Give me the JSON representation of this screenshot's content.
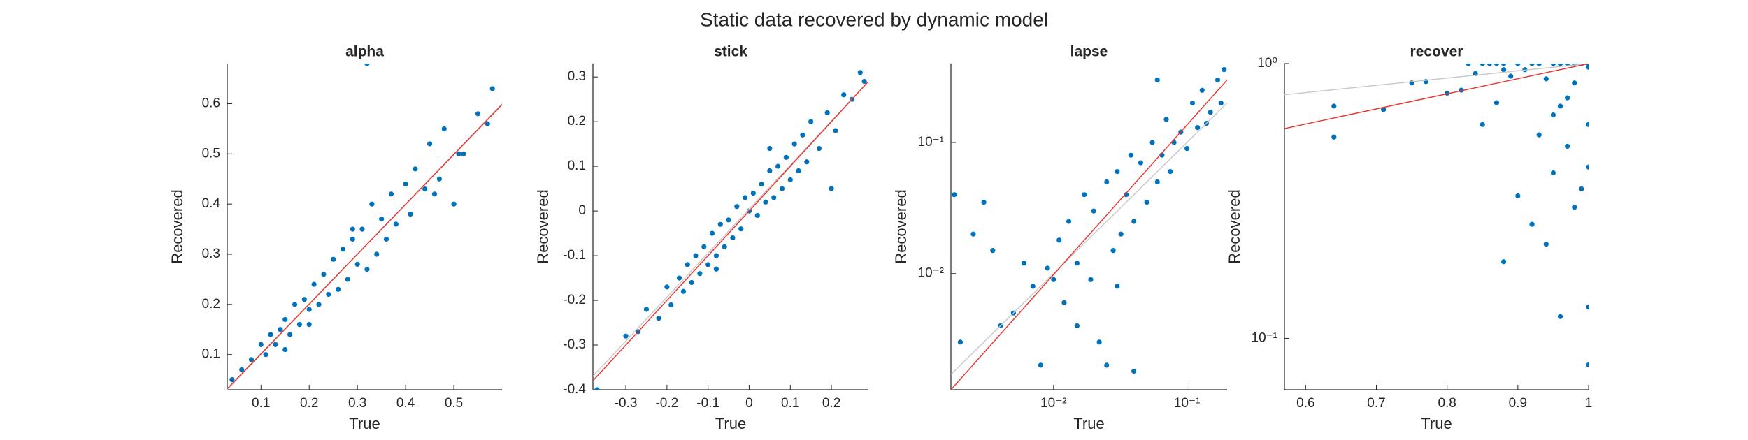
{
  "title": "Static data recovered by dynamic model",
  "chart_data": [
    {
      "type": "scatter",
      "title": "alpha",
      "xlabel": "True",
      "ylabel": "Recovered",
      "color": "#0072bd",
      "xscale": "linear",
      "yscale": "linear",
      "xlim": [
        0.03,
        0.6
      ],
      "ylim": [
        0.03,
        0.68
      ],
      "xticks": [
        0.1,
        0.2,
        0.3,
        0.4,
        0.5
      ],
      "yticks": [
        0.1,
        0.2,
        0.3,
        0.4,
        0.5,
        0.6
      ],
      "x": [
        0.04,
        0.06,
        0.08,
        0.1,
        0.11,
        0.12,
        0.13,
        0.14,
        0.15,
        0.16,
        0.17,
        0.18,
        0.19,
        0.2,
        0.21,
        0.22,
        0.23,
        0.24,
        0.25,
        0.26,
        0.27,
        0.28,
        0.29,
        0.3,
        0.31,
        0.32,
        0.33,
        0.34,
        0.35,
        0.36,
        0.37,
        0.38,
        0.4,
        0.41,
        0.42,
        0.44,
        0.45,
        0.47,
        0.48,
        0.5,
        0.52,
        0.55,
        0.57,
        0.58,
        0.32,
        0.29,
        0.2,
        0.15,
        0.46,
        0.51
      ],
      "values": [
        0.05,
        0.07,
        0.09,
        0.12,
        0.1,
        0.14,
        0.12,
        0.15,
        0.17,
        0.14,
        0.2,
        0.16,
        0.21,
        0.19,
        0.24,
        0.2,
        0.26,
        0.22,
        0.29,
        0.23,
        0.31,
        0.25,
        0.33,
        0.28,
        0.35,
        0.27,
        0.4,
        0.3,
        0.37,
        0.33,
        0.42,
        0.36,
        0.44,
        0.38,
        0.47,
        0.43,
        0.52,
        0.45,
        0.55,
        0.4,
        0.5,
        0.58,
        0.56,
        0.63,
        0.68,
        0.35,
        0.16,
        0.11,
        0.42,
        0.5
      ],
      "lines": [
        {
          "color": "#c8c8c8",
          "x": [
            0.03,
            0.6
          ],
          "y": [
            0.03,
            0.6
          ]
        },
        {
          "color": "#e8312a",
          "x": [
            0.03,
            0.6
          ],
          "y": [
            0.032,
            0.598
          ]
        }
      ]
    },
    {
      "type": "scatter",
      "title": "stick",
      "xlabel": "True",
      "ylabel": "Recovered",
      "color": "#0072bd",
      "xscale": "linear",
      "yscale": "linear",
      "xlim": [
        -0.38,
        0.29
      ],
      "ylim": [
        -0.4,
        0.33
      ],
      "xticks": [
        -0.3,
        -0.2,
        -0.1,
        0,
        0.1,
        0.2
      ],
      "yticks": [
        -0.4,
        -0.3,
        -0.2,
        -0.1,
        0,
        0.1,
        0.2,
        0.3
      ],
      "x": [
        -0.37,
        -0.3,
        -0.27,
        -0.25,
        -0.22,
        -0.2,
        -0.19,
        -0.17,
        -0.16,
        -0.15,
        -0.14,
        -0.13,
        -0.12,
        -0.11,
        -0.1,
        -0.09,
        -0.08,
        -0.07,
        -0.06,
        -0.05,
        -0.04,
        -0.03,
        -0.02,
        -0.01,
        0,
        0.01,
        0.02,
        0.03,
        0.04,
        0.05,
        0.06,
        0.07,
        0.08,
        0.09,
        0.1,
        0.11,
        0.12,
        0.13,
        0.14,
        0.15,
        0.17,
        0.19,
        0.21,
        0.23,
        0.25,
        0.27,
        0.28,
        0.2,
        -0.08,
        0.05
      ],
      "values": [
        -0.4,
        -0.28,
        -0.27,
        -0.22,
        -0.24,
        -0.17,
        -0.21,
        -0.15,
        -0.18,
        -0.12,
        -0.16,
        -0.1,
        -0.14,
        -0.08,
        -0.12,
        -0.05,
        -0.1,
        -0.03,
        -0.08,
        -0.02,
        -0.06,
        0.01,
        -0.04,
        0.03,
        0,
        0.04,
        -0.01,
        0.06,
        0.02,
        0.09,
        0.03,
        0.1,
        0.05,
        0.12,
        0.07,
        0.15,
        0.09,
        0.17,
        0.11,
        0.2,
        0.14,
        0.22,
        0.18,
        0.26,
        0.25,
        0.31,
        0.29,
        0.05,
        -0.13,
        0.14
      ],
      "lines": [
        {
          "color": "#c8c8c8",
          "x": [
            -0.38,
            0.29
          ],
          "y": [
            -0.37,
            0.29
          ]
        },
        {
          "color": "#e8312a",
          "x": [
            -0.38,
            0.29
          ],
          "y": [
            -0.38,
            0.29
          ]
        }
      ]
    },
    {
      "type": "scatter",
      "title": "lapse",
      "xlabel": "True",
      "ylabel": "Recovered",
      "color": "#0072bd",
      "xscale": "log",
      "yscale": "log",
      "xlim": [
        0.0017,
        0.2
      ],
      "ylim": [
        0.0013,
        0.4
      ],
      "xticks": [
        {
          "value": 0.01,
          "label": "10⁻²"
        },
        {
          "value": 0.1,
          "label": "10⁻¹"
        }
      ],
      "yticks": [
        {
          "value": 0.01,
          "label": "10⁻²"
        },
        {
          "value": 0.1,
          "label": "10⁻¹"
        }
      ],
      "x": [
        0.002,
        0.0025,
        0.003,
        0.0035,
        0.004,
        0.005,
        0.006,
        0.007,
        0.008,
        0.009,
        0.01,
        0.011,
        0.012,
        0.013,
        0.015,
        0.017,
        0.019,
        0.02,
        0.022,
        0.025,
        0.028,
        0.03,
        0.032,
        0.035,
        0.038,
        0.04,
        0.045,
        0.05,
        0.055,
        0.06,
        0.065,
        0.07,
        0.075,
        0.08,
        0.09,
        0.1,
        0.11,
        0.12,
        0.13,
        0.14,
        0.15,
        0.17,
        0.18,
        0.19,
        0.0018,
        0.025,
        0.04,
        0.015,
        0.06,
        0.03
      ],
      "values": [
        0.003,
        0.02,
        0.035,
        0.015,
        0.004,
        0.005,
        0.012,
        0.008,
        0.002,
        0.011,
        0.009,
        0.018,
        0.006,
        0.025,
        0.012,
        0.04,
        0.009,
        0.03,
        0.003,
        0.05,
        0.015,
        0.06,
        0.02,
        0.04,
        0.08,
        0.025,
        0.07,
        0.035,
        0.1,
        0.05,
        0.08,
        0.15,
        0.06,
        0.1,
        0.12,
        0.09,
        0.2,
        0.13,
        0.25,
        0.14,
        0.17,
        0.3,
        0.2,
        0.36,
        0.04,
        0.002,
        0.0018,
        0.004,
        0.3,
        0.008
      ],
      "lines": [
        {
          "color": "#c8c8c8",
          "x": [
            0.0017,
            0.2
          ],
          "y": [
            0.0017,
            0.2
          ]
        },
        {
          "color": "#e8312a",
          "x": [
            0.0017,
            0.2
          ],
          "y": [
            0.0013,
            0.3
          ]
        }
      ]
    },
    {
      "type": "scatter",
      "title": "recover",
      "xlabel": "True",
      "ylabel": "Recovered",
      "color": "#0072bd",
      "xscale": "linear",
      "yscale": "log",
      "xlim": [
        0.57,
        1
      ],
      "ylim": [
        0.065,
        1
      ],
      "xticks": [
        0.6,
        0.7,
        0.8,
        0.9,
        1
      ],
      "yticks": [
        {
          "value": 0.1,
          "label": "10⁻¹"
        },
        {
          "value": 1,
          "label": "10⁰"
        }
      ],
      "x": [
        0.64,
        0.64,
        0.71,
        0.75,
        0.77,
        0.8,
        0.82,
        0.83,
        0.84,
        0.85,
        0.86,
        0.87,
        0.88,
        0.88,
        0.89,
        0.9,
        0.9,
        0.91,
        0.92,
        0.92,
        0.93,
        0.93,
        0.94,
        0.94,
        0.95,
        0.95,
        0.96,
        0.96,
        0.97,
        0.97,
        0.98,
        0.98,
        0.99,
        0.99,
        1,
        1,
        1,
        1,
        1,
        1,
        0.85,
        0.87,
        0.9,
        0.93,
        0.96,
        0.98,
        0.99,
        0.97,
        0.88,
        0.95
      ],
      "values": [
        0.54,
        0.7,
        0.68,
        0.85,
        0.86,
        0.78,
        0.8,
        1,
        0.92,
        0.6,
        1,
        0.72,
        1,
        0.19,
        0.9,
        1,
        0.33,
        0.95,
        1,
        0.26,
        1,
        0.55,
        0.88,
        0.22,
        1,
        0.4,
        0.7,
        0.12,
        1,
        0.5,
        0.3,
        0.85,
        1,
        0.35,
        1,
        0.08,
        0.13,
        0.6,
        0.42,
        0.97,
        1,
        1,
        1,
        1,
        1,
        1,
        1,
        0.75,
        0.95,
        0.65
      ],
      "lines": [
        {
          "color": "#c8c8c8",
          "x": [
            0.57,
            1
          ],
          "y": [
            0.77,
            1
          ]
        },
        {
          "color": "#e8312a",
          "x": [
            0.57,
            1
          ],
          "y": [
            0.58,
            1
          ]
        }
      ]
    }
  ]
}
